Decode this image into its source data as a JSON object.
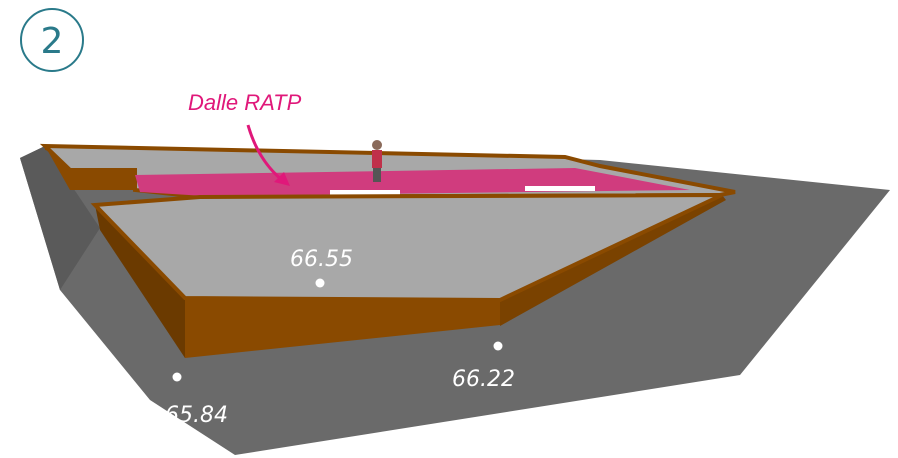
{
  "step": "2",
  "callout": "Dalle RATP",
  "spot_heights": [
    {
      "label": "66.55"
    },
    {
      "label": "66.22"
    },
    {
      "label": "65.84"
    }
  ]
}
